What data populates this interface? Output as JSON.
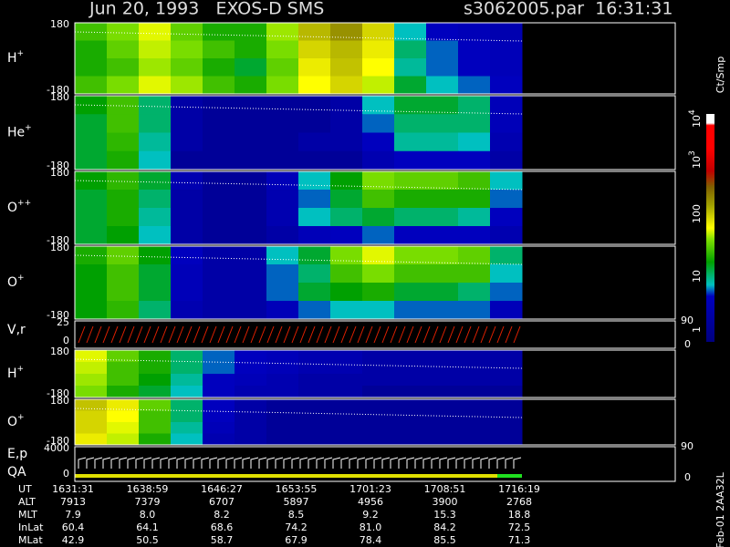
{
  "header": {
    "title": "Jun 20, 1993   EXOS-D SMS",
    "file": "s3062005.par  16:31:31"
  },
  "panels": [
    {
      "label": {
        "base": "H",
        "sup": "+"
      },
      "top": "180",
      "bottom": "-180",
      "cells": [
        [
          40,
          60,
          90,
          50,
          30,
          30,
          70,
          200,
          300,
          150,
          10,
          6,
          5,
          4
        ],
        [
          30,
          50,
          80,
          60,
          40,
          30,
          60,
          150,
          200,
          120,
          15,
          8,
          6,
          5
        ],
        [
          30,
          40,
          70,
          50,
          30,
          20,
          50,
          120,
          180,
          100,
          12,
          8,
          6,
          5
        ],
        [
          40,
          60,
          90,
          70,
          40,
          30,
          60,
          100,
          150,
          80,
          20,
          10,
          8,
          6
        ]
      ]
    },
    {
      "label": {
        "base": "He",
        "sup": "+"
      },
      "top": "180",
      "bottom": "-180",
      "cells": [
        [
          25,
          40,
          15,
          3,
          2,
          2,
          2,
          2,
          3,
          10,
          20,
          20,
          15,
          5
        ],
        [
          20,
          40,
          15,
          3,
          2,
          2,
          2,
          2,
          3,
          8,
          15,
          15,
          15,
          5
        ],
        [
          20,
          35,
          12,
          3,
          2,
          2,
          2,
          3,
          3,
          6,
          12,
          12,
          10,
          4
        ],
        [
          20,
          30,
          10,
          2,
          2,
          2,
          2,
          2,
          2,
          4,
          6,
          6,
          6,
          3
        ]
      ]
    },
    {
      "label": {
        "base": "O",
        "sup": "++"
      },
      "top": "180",
      "bottom": "-180",
      "cells": [
        [
          25,
          35,
          20,
          4,
          2,
          2,
          5,
          10,
          25,
          60,
          50,
          50,
          40,
          10
        ],
        [
          20,
          30,
          15,
          3,
          2,
          2,
          4,
          8,
          20,
          40,
          30,
          30,
          30,
          8
        ],
        [
          20,
          30,
          12,
          3,
          2,
          2,
          4,
          10,
          15,
          20,
          15,
          15,
          12,
          6
        ],
        [
          20,
          25,
          10,
          3,
          2,
          2,
          3,
          5,
          6,
          8,
          6,
          6,
          6,
          4
        ]
      ]
    },
    {
      "label": {
        "base": "O",
        "sup": "+"
      },
      "top": "180",
      "bottom": "-180",
      "cells": [
        [
          30,
          50,
          25,
          6,
          3,
          3,
          10,
          20,
          60,
          90,
          60,
          60,
          50,
          15
        ],
        [
          25,
          40,
          20,
          5,
          3,
          3,
          8,
          15,
          40,
          60,
          40,
          40,
          40,
          10
        ],
        [
          25,
          40,
          20,
          5,
          3,
          3,
          8,
          20,
          25,
          30,
          20,
          20,
          15,
          8
        ],
        [
          25,
          35,
          15,
          4,
          3,
          3,
          5,
          8,
          10,
          10,
          8,
          8,
          8,
          5
        ]
      ]
    },
    {
      "label": {
        "base": "H",
        "sup": "+"
      },
      "top": "180",
      "bottom": "-180",
      "cells": [
        [
          90,
          50,
          30,
          15,
          8,
          6,
          5,
          4,
          4,
          3,
          3,
          3,
          3,
          3
        ],
        [
          80,
          40,
          30,
          15,
          8,
          6,
          5,
          4,
          4,
          3,
          3,
          3,
          3,
          3
        ],
        [
          70,
          40,
          25,
          12,
          6,
          5,
          4,
          3,
          3,
          3,
          3,
          3,
          3,
          3
        ],
        [
          60,
          30,
          20,
          10,
          6,
          4,
          4,
          3,
          3,
          2,
          2,
          2,
          2,
          2
        ]
      ]
    },
    {
      "label": {
        "base": "O",
        "sup": "+"
      },
      "top": "180",
      "bottom": "-180",
      "cells": [
        [
          180,
          120,
          50,
          15,
          6,
          3,
          2,
          2,
          2,
          2,
          2,
          2,
          2,
          2
        ],
        [
          150,
          100,
          40,
          15,
          6,
          3,
          2,
          2,
          2,
          2,
          2,
          2,
          2,
          2
        ],
        [
          150,
          90,
          40,
          12,
          5,
          3,
          2,
          2,
          2,
          2,
          2,
          2,
          2,
          2
        ],
        [
          120,
          80,
          30,
          10,
          4,
          3,
          2,
          2,
          2,
          2,
          2,
          2,
          2,
          2
        ]
      ]
    }
  ],
  "velocity": {
    "label": "V,r",
    "left": [
      "25",
      "0"
    ],
    "right": [
      "90",
      "0"
    ]
  },
  "energy": {
    "label": "E,p",
    "label2": "QA",
    "left": [
      "4000",
      "0"
    ],
    "right": [
      "90",
      "0"
    ]
  },
  "colorbar": {
    "title": "Ct/Smp",
    "labels": [
      {
        "base": "10",
        "sup": "4"
      },
      {
        "base": "10",
        "sup": "3"
      },
      {
        "base": "100",
        "sup": ""
      },
      {
        "base": "10",
        "sup": ""
      },
      {
        "base": "1",
        "sup": ""
      }
    ]
  },
  "footer": {
    "rows": [
      {
        "name": "UT",
        "values": [
          "1631:31",
          "1638:59",
          "1646:27",
          "1653:55",
          "1701:23",
          "1708:51",
          "1716:19"
        ]
      },
      {
        "name": "ALT",
        "values": [
          "7913",
          "7379",
          "6707",
          "5897",
          "4956",
          "3900",
          "2768"
        ]
      },
      {
        "name": "MLT",
        "values": [
          "7.9",
          "8.0",
          "8.2",
          "8.5",
          "9.2",
          "15.3",
          "18.8"
        ]
      },
      {
        "name": "InLat",
        "values": [
          "60.4",
          "64.1",
          "68.6",
          "74.2",
          "81.0",
          "84.2",
          "72.5"
        ]
      },
      {
        "name": "MLat",
        "values": [
          "42.9",
          "50.5",
          "58.7",
          "67.9",
          "78.4",
          "85.5",
          "71.3"
        ]
      }
    ],
    "note": "Feb-01 2AA32L"
  }
}
